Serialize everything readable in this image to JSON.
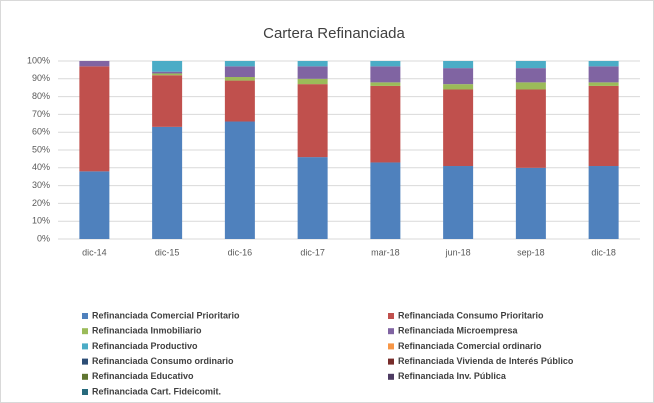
{
  "chart_data": {
    "type": "bar",
    "stacked": true,
    "title": "Cartera Refinanciada",
    "categories": [
      "dic-14",
      "dic-15",
      "dic-16",
      "dic-17",
      "mar-18",
      "jun-18",
      "sep-18",
      "dic-18"
    ],
    "ylim": [
      0,
      100
    ],
    "yticks": [
      {
        "value": 0,
        "label": "0%"
      },
      {
        "value": 10,
        "label": "10%"
      },
      {
        "value": 20,
        "label": "20%"
      },
      {
        "value": 30,
        "label": "30%"
      },
      {
        "value": 40,
        "label": "40%"
      },
      {
        "value": 50,
        "label": "50%"
      },
      {
        "value": 60,
        "label": "60%"
      },
      {
        "value": 70,
        "label": "70%"
      },
      {
        "value": 80,
        "label": "80%"
      },
      {
        "value": 90,
        "label": "90%"
      },
      {
        "value": 100,
        "label": "100%"
      }
    ],
    "grid": true,
    "legend": "bottom",
    "series": [
      {
        "name": "Refinanciada Comercial Prioritario",
        "color": "#4f81bd",
        "values": [
          38,
          63,
          66,
          46,
          43,
          41,
          40,
          41
        ]
      },
      {
        "name": "Refinanciada Consumo Prioritario",
        "color": "#c0504d",
        "values": [
          59,
          29,
          23,
          41,
          43,
          43,
          44,
          45
        ]
      },
      {
        "name": "Refinanciada Inmobiliario",
        "color": "#9bbb59",
        "values": [
          0,
          1,
          2,
          3,
          2,
          3,
          4,
          2
        ]
      },
      {
        "name": "Refinanciada Microempresa",
        "color": "#8064a2",
        "values": [
          3,
          1,
          6,
          7,
          9,
          9,
          8,
          9
        ]
      },
      {
        "name": "Refinanciada Productivo",
        "color": "#4bacc6",
        "values": [
          0,
          6,
          3,
          3,
          3,
          4,
          4,
          3
        ]
      },
      {
        "name": "Refinanciada Comercial ordinario",
        "color": "#f79646",
        "values": [
          0,
          0,
          0,
          0,
          0,
          0,
          0,
          0
        ]
      },
      {
        "name": "Refinanciada Consumo ordinario",
        "color": "#2c4d75",
        "values": [
          0,
          0,
          0,
          0,
          0,
          0,
          0,
          0
        ]
      },
      {
        "name": "Refinanciada Vivienda de Interés Público",
        "color": "#772c2a",
        "values": [
          0,
          0,
          0,
          0,
          0,
          0,
          0,
          0
        ]
      },
      {
        "name": "Refinanciada Educativo",
        "color": "#5f7530",
        "values": [
          0,
          0,
          0,
          0,
          0,
          0,
          0,
          0
        ]
      },
      {
        "name": "Refinanciada Inv. Pública",
        "color": "#4d3b62",
        "values": [
          0,
          0,
          0,
          0,
          0,
          0,
          0,
          0
        ]
      },
      {
        "name": "Refinanciada Cart. Fideicomit.",
        "color": "#276a7c",
        "values": [
          0,
          0,
          0,
          0,
          0,
          0,
          0,
          0
        ]
      }
    ]
  }
}
